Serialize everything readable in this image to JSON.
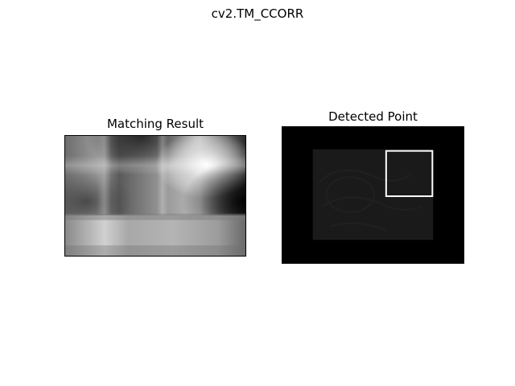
{
  "figure": {
    "title": "cv2.TM_CCORR"
  },
  "panels": [
    {
      "title": "Matching Result",
      "image": "template-matching-correlation-heatmap"
    },
    {
      "title": "Detected Point",
      "image": "dark-image-with-detection-rectangle"
    }
  ],
  "colors": {
    "background": "#ffffff",
    "text": "#000000",
    "detection_box": "#ffffff",
    "image_background": "#000000"
  }
}
